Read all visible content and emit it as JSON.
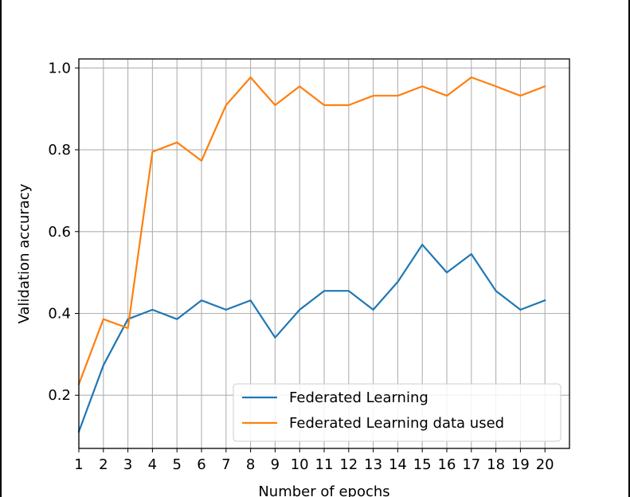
{
  "chart_data": {
    "type": "line",
    "title": "",
    "xlabel": "Number of epochs",
    "ylabel": "Validation accuracy",
    "x": [
      1,
      2,
      3,
      4,
      5,
      6,
      7,
      8,
      9,
      10,
      11,
      12,
      13,
      14,
      15,
      16,
      17,
      18,
      19,
      20
    ],
    "xlim": [
      1,
      21
    ],
    "ylim": [
      0.07,
      1.022
    ],
    "yticks": [
      0.2,
      0.4,
      0.6,
      0.8,
      1.0
    ],
    "ytick_labels": [
      "0.2",
      "0.4",
      "0.6",
      "0.8",
      "1.0"
    ],
    "grid": true,
    "legend_position": "lower-right",
    "series": [
      {
        "name": "Federated Learning",
        "color": "#1f77b4",
        "values": [
          0.111,
          0.273,
          0.386,
          0.409,
          0.386,
          0.432,
          0.409,
          0.432,
          0.341,
          0.409,
          0.455,
          0.455,
          0.409,
          0.477,
          0.568,
          0.5,
          0.545,
          0.455,
          0.409,
          0.432
        ]
      },
      {
        "name": "Federated Learning data used",
        "color": "#ff7f0e",
        "values": [
          0.227,
          0.386,
          0.364,
          0.795,
          0.818,
          0.773,
          0.909,
          0.977,
          0.909,
          0.955,
          0.909,
          0.909,
          0.932,
          0.932,
          0.955,
          0.932,
          0.977,
          0.955,
          0.932,
          0.955
        ]
      }
    ]
  }
}
